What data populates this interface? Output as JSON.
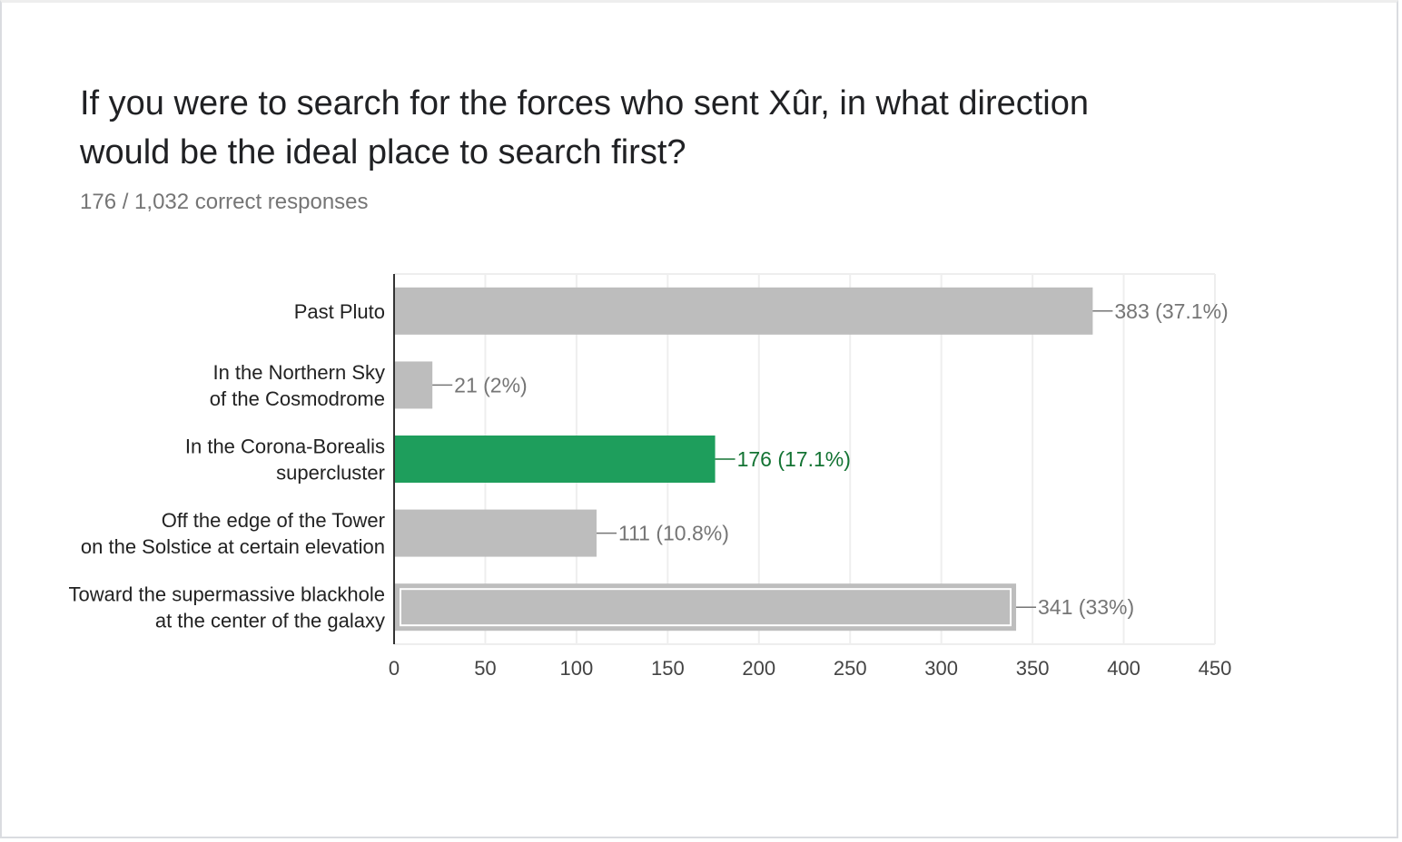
{
  "question": {
    "title_line1": "If you were to search for the forces who sent Xûr, in what direction",
    "title_line2": "would be the ideal place to search first?",
    "summary": "176 / 1,032 correct responses"
  },
  "colors": {
    "bar": "#bdbdbd",
    "correct_bar": "#1e9e5c",
    "correct_label": "#137333",
    "label": "#757575",
    "grid": "#eeeeee",
    "axis": "#333333",
    "category_text": "#222222",
    "tick_text": "#444444"
  },
  "chart_data": {
    "type": "bar",
    "orientation": "horizontal",
    "categories": [
      [
        "Past Pluto"
      ],
      [
        "In the Northern Sky",
        "of the Cosmodrome"
      ],
      [
        "In the Corona-Borealis",
        "supercluster"
      ],
      [
        "Off the edge of the Tower",
        "on the Solstice at certain elevation"
      ],
      [
        "Toward the supermassive blackhole",
        "at the center of the galaxy"
      ]
    ],
    "values": [
      383,
      21,
      176,
      111,
      341
    ],
    "value_labels": [
      "383 (37.1%)",
      "21 (2%)",
      "176 (17.1%)",
      "111 (10.8%)",
      "341 (33%)"
    ],
    "correct_index": 2,
    "selected_index": 4,
    "xlim": [
      0,
      450
    ],
    "xticks": [
      0,
      50,
      100,
      150,
      200,
      250,
      300,
      350,
      400,
      450
    ],
    "grid": true,
    "legend": "none"
  }
}
